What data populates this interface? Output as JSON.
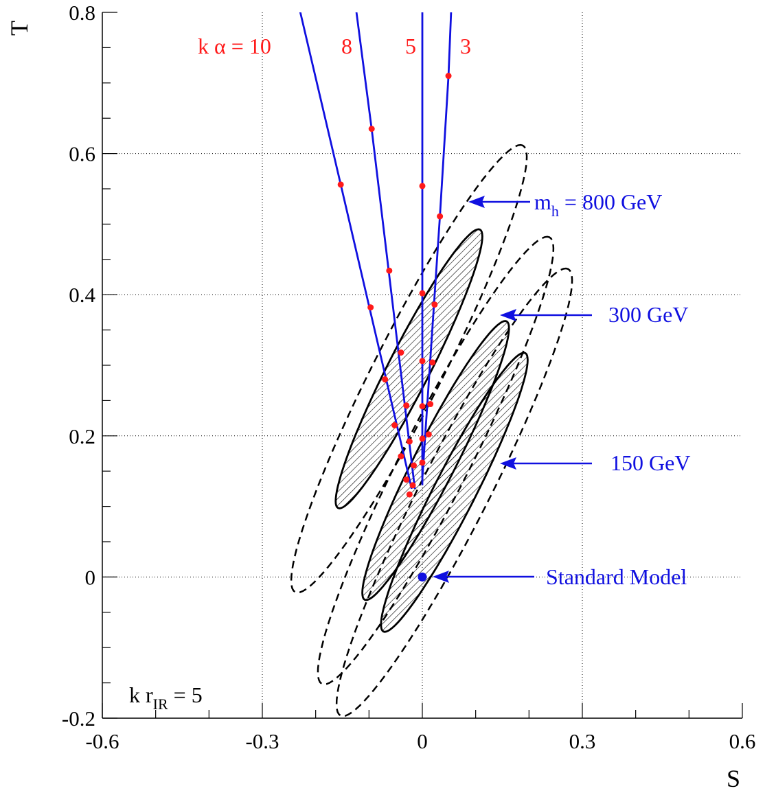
{
  "chart_data": {
    "type": "scatter",
    "title": "",
    "xlabel": "S",
    "ylabel": "T",
    "xlim": [
      -0.6,
      0.6
    ],
    "ylim": [
      -0.2,
      0.8
    ],
    "x_ticks": [
      {
        "value": -0.6,
        "label": "-0.6"
      },
      {
        "value": -0.3,
        "label": "-0.3"
      },
      {
        "value": 0,
        "label": "0"
      },
      {
        "value": 0.3,
        "label": "0.3"
      },
      {
        "value": 0.6,
        "label": "0.6"
      }
    ],
    "y_ticks": [
      {
        "value": -0.2,
        "label": "-0.2"
      },
      {
        "value": 0,
        "label": "0"
      },
      {
        "value": 0.2,
        "label": "0.2"
      },
      {
        "value": 0.4,
        "label": "0.4"
      },
      {
        "value": 0.6,
        "label": "0.6"
      },
      {
        "value": 0.8,
        "label": "0.8"
      }
    ],
    "grid": true,
    "colors": {
      "ellipse": "#000000",
      "curve": "#1010e0",
      "point": "#ff1a1a",
      "label_red": "#ff1a1a",
      "label_blue": "#1010e0"
    },
    "ellipses": [
      {
        "name": "m_h = 800 GeV",
        "kind": "inner",
        "center": [
          -0.025,
          0.295
        ],
        "semi_major": 0.293,
        "semi_minor": 0.039,
        "angle_deg": 63
      },
      {
        "name": "m_h = 800 GeV",
        "kind": "outer",
        "center": [
          -0.025,
          0.295
        ],
        "semi_major": 0.47,
        "semi_minor": 0.064,
        "angle_deg": 63
      },
      {
        "name": "300 GeV",
        "kind": "inner",
        "center": [
          0.025,
          0.165
        ],
        "semi_major": 0.293,
        "semi_minor": 0.039,
        "angle_deg": 63
      },
      {
        "name": "300 GeV",
        "kind": "outer",
        "center": [
          0.025,
          0.165
        ],
        "semi_major": 0.47,
        "semi_minor": 0.064,
        "angle_deg": 63
      },
      {
        "name": "150 GeV",
        "kind": "inner",
        "center": [
          0.06,
          0.12
        ],
        "semi_major": 0.293,
        "semi_minor": 0.039,
        "angle_deg": 63
      },
      {
        "name": "150 GeV",
        "kind": "outer",
        "center": [
          0.06,
          0.12
        ],
        "semi_major": 0.47,
        "semi_minor": 0.064,
        "angle_deg": 63
      }
    ],
    "series": [
      {
        "name": "k α = 10",
        "label": "k α = 10",
        "lines": [
          [
            -0.02,
            0.125
          ],
          [
            -0.153,
            0.556
          ],
          [
            -0.235,
            0.82
          ]
        ],
        "markers": [
          [
            -0.024,
            0.117
          ],
          [
            -0.03,
            0.138
          ],
          [
            -0.04,
            0.171
          ],
          [
            -0.052,
            0.215
          ],
          [
            -0.07,
            0.28
          ],
          [
            -0.097,
            0.382
          ],
          [
            -0.153,
            0.556
          ]
        ]
      },
      {
        "name": "k α = 8",
        "label": "8",
        "lines": [
          [
            -0.014,
            0.125
          ],
          [
            -0.095,
            0.635
          ],
          [
            -0.127,
            0.82
          ]
        ],
        "markers": [
          [
            -0.018,
            0.13
          ],
          [
            -0.024,
            0.192
          ],
          [
            -0.03,
            0.243
          ],
          [
            -0.04,
            0.318
          ],
          [
            -0.062,
            0.434
          ],
          [
            -0.095,
            0.635
          ]
        ]
      },
      {
        "name": "k α = 5",
        "label": "5",
        "lines": [
          [
            0,
            0.13
          ],
          [
            0,
            0.82
          ]
        ],
        "markers": [
          [
            0,
            0.162
          ],
          [
            0,
            0.196
          ],
          [
            0,
            0.242
          ],
          [
            0,
            0.306
          ],
          [
            0,
            0.402
          ],
          [
            0,
            0.554
          ]
        ]
      },
      {
        "name": "k α = 3",
        "label": "3",
        "lines": [
          [
            0,
            0.14
          ],
          [
            0.033,
            0.511
          ],
          [
            0.049,
            0.71
          ],
          [
            0.055,
            0.82
          ]
        ],
        "markers": [
          [
            -0.016,
            0.158
          ],
          [
            0.012,
            0.202
          ],
          [
            0.015,
            0.245
          ],
          [
            0.019,
            0.304
          ],
          [
            0.023,
            0.386
          ],
          [
            0.033,
            0.511
          ],
          [
            0.049,
            0.71
          ]
        ]
      }
    ],
    "standard_model": {
      "label": "Standard Model",
      "point": [
        0,
        0
      ]
    },
    "annotations": {
      "mh_prefix": "m",
      "mh_sub": "h",
      "mh_suffix": " = 800 GeV",
      "label_300": "300 GeV",
      "label_150": "150 GeV",
      "sm_label": "Standard Model",
      "kr_prefix": "k r",
      "kr_sub": "IR",
      "kr_suffix": " = 5",
      "ka_10": "k α = 10",
      "ka_8": "8",
      "ka_5": "5",
      "ka_3": "3"
    }
  }
}
